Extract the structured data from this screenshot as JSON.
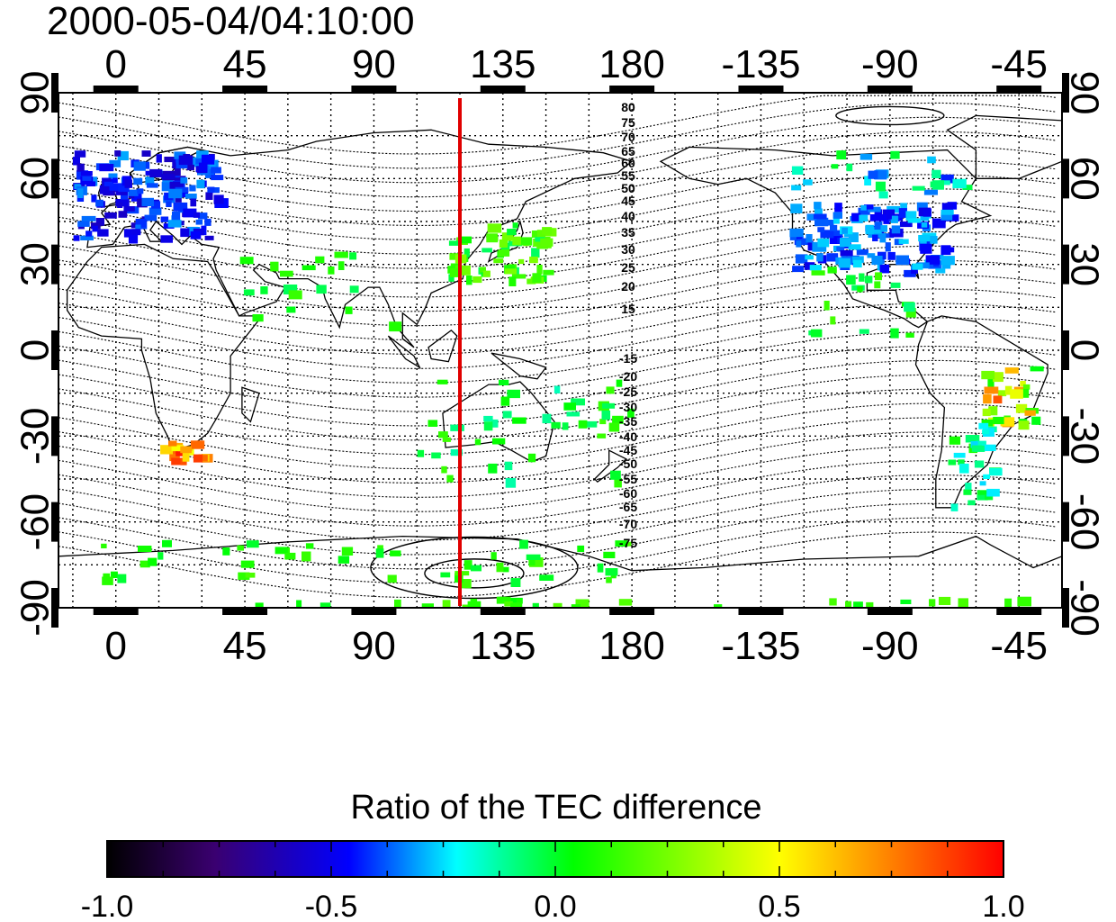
{
  "title": "2000-05-04/04:10:00",
  "map": {
    "x_ticks_top": [
      "0",
      "45",
      "90",
      "135",
      "180",
      "-135",
      "-90",
      "-45"
    ],
    "x_ticks_bottom": [
      "0",
      "45",
      "90",
      "135",
      "180",
      "-135",
      "-90",
      "-45"
    ],
    "y_ticks_left": [
      "90",
      "60",
      "30",
      "0",
      "-30",
      "-60",
      "-90"
    ],
    "y_ticks_right": [
      "90",
      "60",
      "30",
      "0",
      "-30",
      "-60",
      "-90"
    ],
    "meridian_marker_longitude": 120,
    "meridian_marker_color": "#e00000",
    "contour_labels_north": [
      "80",
      "75",
      "70",
      "65",
      "60",
      "55",
      "50",
      "45",
      "40",
      "35",
      "30",
      "25",
      "20",
      "15"
    ],
    "contour_labels_south": [
      "-15",
      "-20",
      "-25",
      "-30",
      "-35",
      "-40",
      "-45",
      "-50",
      "-55",
      "-60",
      "-65",
      "-70",
      "-75"
    ]
  },
  "colorbar": {
    "title": "Ratio of the TEC difference",
    "tick_labels": [
      "-1.0",
      "-0.5",
      "0.0",
      "0.5",
      "1.0"
    ],
    "range": [
      -1.0,
      1.0
    ],
    "colors": [
      "#000000",
      "#3a0070",
      "#0000ff",
      "#00ffff",
      "#00ff00",
      "#ffff00",
      "#ff0000"
    ]
  }
}
